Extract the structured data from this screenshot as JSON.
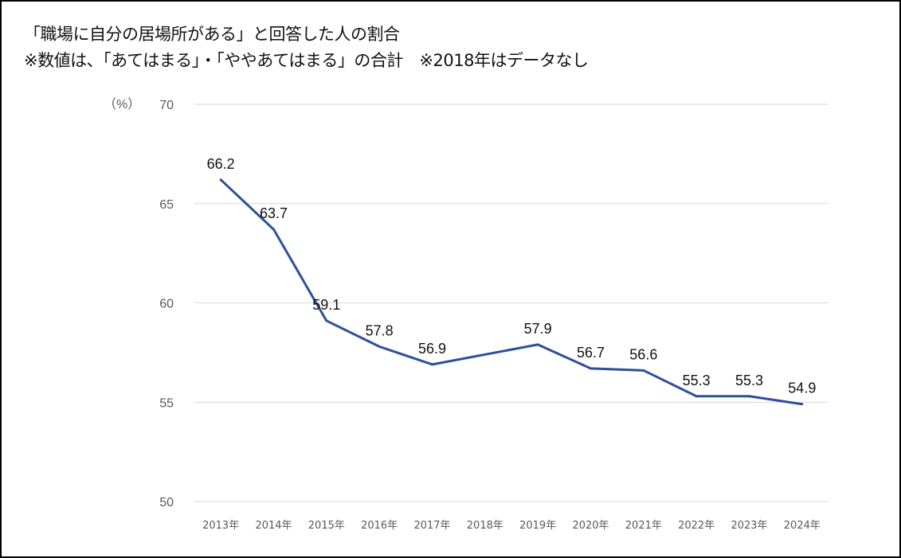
{
  "chart_data": {
    "type": "line",
    "title": "「職場に自分の居場所がある」と回答した人の割合",
    "subtitle": "※数値は、「あてはまる」・「ややあてはまる」の合計　※2018年はデータなし",
    "ylabel": "（%）",
    "xlabel": "",
    "ylim": [
      50,
      70
    ],
    "yticks": [
      "50",
      "55",
      "60",
      "65",
      "70"
    ],
    "grid": true,
    "categories": [
      "2013年",
      "2014年",
      "2015年",
      "2016年",
      "2017年",
      "2018年",
      "2019年",
      "2020年",
      "2021年",
      "2022年",
      "2023年",
      "2024年"
    ],
    "series": [
      {
        "name": "割合",
        "color": "#2f4f9a",
        "values": [
          66.2,
          63.7,
          59.1,
          57.8,
          56.9,
          null,
          57.9,
          56.7,
          56.6,
          55.3,
          55.3,
          54.9
        ],
        "labels": [
          "66.2",
          "63.7",
          "59.1",
          "57.8",
          "56.9",
          null,
          "57.9",
          "56.7",
          "56.6",
          "55.3",
          "55.3",
          "54.9"
        ]
      }
    ]
  }
}
